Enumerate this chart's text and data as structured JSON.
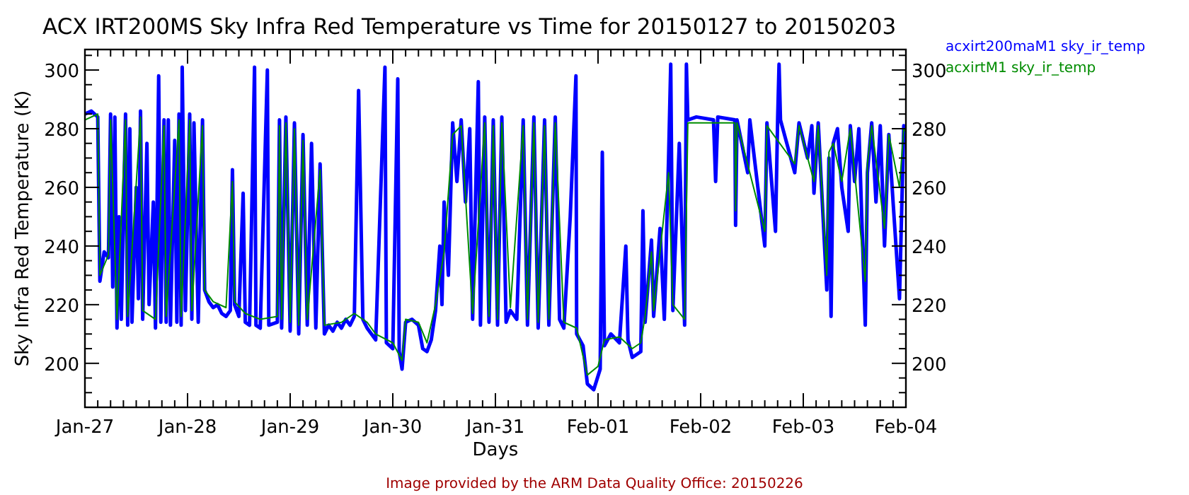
{
  "chart_data": {
    "type": "line",
    "title": "ACX IRT200MS Sky Infra Red Temperature vs Time for 20150127 to 20150203",
    "xlabel": "Days",
    "ylabel": "Sky Infra Red Temperature (K)",
    "legend": "top right",
    "annotations": [
      "Image provided by the ARM Data Quality Office: 20150226"
    ],
    "xlim": [
      "2015-01-27",
      "2015-02-04"
    ],
    "xticks": [
      {
        "value": "2015-01-27",
        "label": "Jan-27"
      },
      {
        "value": "2015-01-27T03:00",
        "label": null
      },
      {
        "value": "2015-01-27T06:00",
        "label": null
      },
      {
        "value": "2015-01-27T09:00",
        "label": null
      },
      {
        "value": "2015-01-27T12:00",
        "label": null
      },
      {
        "value": "2015-01-27T15:00",
        "label": null
      },
      {
        "value": "2015-01-27T18:00",
        "label": null
      },
      {
        "value": "2015-01-27T21:00",
        "label": null
      },
      {
        "value": "2015-01-28",
        "label": "Jan-28"
      },
      {
        "value": "2015-01-28T03:00",
        "label": null
      },
      {
        "value": "2015-01-28T06:00",
        "label": null
      },
      {
        "value": "2015-01-28T09:00",
        "label": null
      },
      {
        "value": "2015-01-28T12:00",
        "label": null
      },
      {
        "value": "2015-01-28T15:00",
        "label": null
      },
      {
        "value": "2015-01-28T18:00",
        "label": null
      },
      {
        "value": "2015-01-28T21:00",
        "label": null
      },
      {
        "value": "2015-01-29",
        "label": "Jan-29"
      },
      {
        "value": "2015-01-29T03:00",
        "label": null
      },
      {
        "value": "2015-01-29T06:00",
        "label": null
      },
      {
        "value": "2015-01-29T09:00",
        "label": null
      },
      {
        "value": "2015-01-29T12:00",
        "label": null
      },
      {
        "value": "2015-01-29T15:00",
        "label": null
      },
      {
        "value": "2015-01-29T18:00",
        "label": null
      },
      {
        "value": "2015-01-29T21:00",
        "label": null
      },
      {
        "value": "2015-01-30",
        "label": "Jan-30"
      },
      {
        "value": "2015-01-30T03:00",
        "label": null
      },
      {
        "value": "2015-01-30T06:00",
        "label": null
      },
      {
        "value": "2015-01-30T09:00",
        "label": null
      },
      {
        "value": "2015-01-30T12:00",
        "label": null
      },
      {
        "value": "2015-01-30T15:00",
        "label": null
      },
      {
        "value": "2015-01-30T18:00",
        "label": null
      },
      {
        "value": "2015-01-30T21:00",
        "label": null
      },
      {
        "value": "2015-01-31",
        "label": "Jan-31"
      },
      {
        "value": "2015-01-31T03:00",
        "label": null
      },
      {
        "value": "2015-01-31T06:00",
        "label": null
      },
      {
        "value": "2015-01-31T09:00",
        "label": null
      },
      {
        "value": "2015-01-31T12:00",
        "label": null
      },
      {
        "value": "2015-01-31T15:00",
        "label": null
      },
      {
        "value": "2015-01-31T18:00",
        "label": null
      },
      {
        "value": "2015-01-31T21:00",
        "label": null
      },
      {
        "value": "2015-02-01",
        "label": "Feb-01"
      },
      {
        "value": "2015-02-01T03:00",
        "label": null
      },
      {
        "value": "2015-02-01T06:00",
        "label": null
      },
      {
        "value": "2015-02-01T09:00",
        "label": null
      },
      {
        "value": "2015-02-01T12:00",
        "label": null
      },
      {
        "value": "2015-02-01T15:00",
        "label": null
      },
      {
        "value": "2015-02-01T18:00",
        "label": null
      },
      {
        "value": "2015-02-01T21:00",
        "label": null
      },
      {
        "value": "2015-02-02",
        "label": "Feb-02"
      },
      {
        "value": "2015-02-02T03:00",
        "label": null
      },
      {
        "value": "2015-02-02T06:00",
        "label": null
      },
      {
        "value": "2015-02-02T09:00",
        "label": null
      },
      {
        "value": "2015-02-02T12:00",
        "label": null
      },
      {
        "value": "2015-02-02T15:00",
        "label": null
      },
      {
        "value": "2015-02-02T18:00",
        "label": null
      },
      {
        "value": "2015-02-02T21:00",
        "label": null
      },
      {
        "value": "2015-02-03",
        "label": "Feb-03"
      },
      {
        "value": "2015-02-03T03:00",
        "label": null
      },
      {
        "value": "2015-02-03T06:00",
        "label": null
      },
      {
        "value": "2015-02-03T09:00",
        "label": null
      },
      {
        "value": "2015-02-03T12:00",
        "label": null
      },
      {
        "value": "2015-02-03T15:00",
        "label": null
      },
      {
        "value": "2015-02-03T18:00",
        "label": null
      },
      {
        "value": "2015-02-03T21:00",
        "label": null
      },
      {
        "value": "2015-02-04",
        "label": "Feb-04"
      }
    ],
    "ylim": [
      185,
      307
    ],
    "yticks": [
      {
        "value": 185,
        "label": null
      },
      {
        "value": 190,
        "label": null
      },
      {
        "value": 195,
        "label": null
      },
      200,
      {
        "value": 205,
        "label": null
      },
      {
        "value": 210,
        "label": null
      },
      {
        "value": 215,
        "label": null
      },
      220,
      {
        "value": 225,
        "label": null
      },
      {
        "value": 230,
        "label": null
      },
      {
        "value": 235,
        "label": null
      },
      240,
      {
        "value": 245,
        "label": null
      },
      {
        "value": 250,
        "label": null
      },
      {
        "value": 255,
        "label": null
      },
      260,
      {
        "value": 265,
        "label": null
      },
      {
        "value": 270,
        "label": null
      },
      {
        "value": 275,
        "label": null
      },
      280,
      {
        "value": 285,
        "label": null
      },
      {
        "value": 290,
        "label": null
      },
      {
        "value": 295,
        "label": null
      },
      300,
      {
        "value": 305,
        "label": null
      }
    ],
    "y2lim": [
      185,
      307
    ],
    "y2ticks": [
      {
        "value": 185,
        "label": null
      },
      {
        "value": 190,
        "label": null
      },
      {
        "value": 195,
        "label": null
      },
      200,
      {
        "value": 205,
        "label": null
      },
      {
        "value": 210,
        "label": null
      },
      {
        "value": 215,
        "label": null
      },
      220,
      {
        "value": 225,
        "label": null
      },
      {
        "value": 230,
        "label": null
      },
      {
        "value": 235,
        "label": null
      },
      240,
      {
        "value": 245,
        "label": null
      },
      {
        "value": 250,
        "label": null
      },
      {
        "value": 255,
        "label": null
      },
      260,
      {
        "value": 265,
        "label": null
      },
      {
        "value": 270,
        "label": null
      },
      {
        "value": 275,
        "label": null
      },
      280,
      {
        "value": 285,
        "label": null
      },
      {
        "value": 290,
        "label": null
      },
      {
        "value": 295,
        "label": null
      },
      300,
      {
        "value": 305,
        "label": null
      }
    ],
    "series": [
      {
        "name": "acxirt200maM1 sky_ir_temp",
        "color": "#0000ff",
        "x": [
          "2015-01-27T00:00",
          "2015-01-27T01:30",
          "2015-01-27T03:00",
          "2015-01-27T03:30",
          "2015-01-27T04:30",
          "2015-01-27T05:30",
          "2015-01-27T06:00",
          "2015-01-27T06:30",
          "2015-01-27T07:00",
          "2015-01-27T07:30",
          "2015-01-27T08:00",
          "2015-01-27T08:30",
          "2015-01-27T09:30",
          "2015-01-27T10:00",
          "2015-01-27T10:30",
          "2015-01-27T11:00",
          "2015-01-27T12:00",
          "2015-01-27T12:30",
          "2015-01-27T13:00",
          "2015-01-27T13:30",
          "2015-01-27T14:30",
          "2015-01-27T15:00",
          "2015-01-27T16:00",
          "2015-01-27T16:30",
          "2015-01-27T17:15",
          "2015-01-27T17:45",
          "2015-01-27T18:30",
          "2015-01-27T19:00",
          "2015-01-27T19:30",
          "2015-01-27T20:00",
          "2015-01-27T21:00",
          "2015-01-27T21:30",
          "2015-01-27T22:00",
          "2015-01-27T22:30",
          "2015-01-27T22:45",
          "2015-01-27T23:30",
          "2015-01-28T00:30",
          "2015-01-28T01:00",
          "2015-01-28T01:30",
          "2015-01-28T02:30",
          "2015-01-28T03:30",
          "2015-01-28T04:00",
          "2015-01-28T05:00",
          "2015-01-28T06:00",
          "2015-01-28T07:00",
          "2015-01-28T08:00",
          "2015-01-28T09:00",
          "2015-01-28T10:00",
          "2015-01-28T10:30",
          "2015-01-28T11:00",
          "2015-01-28T12:00",
          "2015-01-28T13:00",
          "2015-01-28T13:30",
          "2015-01-28T14:30",
          "2015-01-28T15:40",
          "2015-01-28T16:00",
          "2015-01-28T17:00",
          "2015-01-28T18:40",
          "2015-01-28T19:00",
          "2015-01-28T21:00",
          "2015-01-28T21:30",
          "2015-01-28T22:00",
          "2015-01-28T23:00",
          "2015-01-29T00:00",
          "2015-01-29T01:00",
          "2015-01-29T02:00",
          "2015-01-29T03:00",
          "2015-01-29T04:00",
          "2015-01-29T05:00",
          "2015-01-29T06:00",
          "2015-01-29T07:00",
          "2015-01-29T08:00",
          "2015-01-29T09:00",
          "2015-01-29T10:00",
          "2015-01-29T11:00",
          "2015-01-29T12:00",
          "2015-01-29T13:00",
          "2015-01-29T14:00",
          "2015-01-29T15:00",
          "2015-01-29T16:00",
          "2015-01-29T17:00",
          "2015-01-29T18:00",
          "2015-01-29T19:00",
          "2015-01-29T20:00",
          "2015-01-29T22:10",
          "2015-01-29T22:30",
          "2015-01-30T00:00",
          "2015-01-30T01:10",
          "2015-01-30T01:30",
          "2015-01-30T02:10",
          "2015-01-30T03:00",
          "2015-01-30T04:30",
          "2015-01-30T06:00",
          "2015-01-30T07:00",
          "2015-01-30T08:00",
          "2015-01-30T09:00",
          "2015-01-30T10:00",
          "2015-01-30T11:00",
          "2015-01-30T11:30",
          "2015-01-30T12:00",
          "2015-01-30T13:00",
          "2015-01-30T14:00",
          "2015-01-30T15:00",
          "2015-01-30T16:00",
          "2015-01-30T17:00",
          "2015-01-30T18:00",
          "2015-01-30T18:40",
          "2015-01-30T20:00",
          "2015-01-30T20:30",
          "2015-01-30T21:30",
          "2015-01-30T22:30",
          "2015-01-30T23:30",
          "2015-01-31T00:30",
          "2015-01-31T01:30",
          "2015-01-31T02:30",
          "2015-01-31T03:30",
          "2015-01-31T05:00",
          "2015-01-31T06:30",
          "2015-01-31T07:30",
          "2015-01-31T09:00",
          "2015-01-31T10:00",
          "2015-01-31T11:30",
          "2015-01-31T12:30",
          "2015-01-31T14:00",
          "2015-01-31T15:00",
          "2015-01-31T16:00",
          "2015-01-31T17:30",
          "2015-01-31T18:50",
          "2015-01-31T19:00",
          "2015-01-31T20:30",
          "2015-01-31T21:30",
          "2015-01-31T23:00",
          "2015-02-01T00:30",
          "2015-02-01T01:00",
          "2015-02-01T01:30",
          "2015-02-01T03:00",
          "2015-02-01T05:00",
          "2015-02-01T06:30",
          "2015-02-01T07:00",
          "2015-02-01T08:00",
          "2015-02-01T10:00",
          "2015-02-01T10:30",
          "2015-02-01T11:00",
          "2015-02-01T12:30",
          "2015-02-01T13:00",
          "2015-02-01T14:30",
          "2015-02-01T15:30",
          "2015-02-01T16:30",
          "2015-02-01T17:00",
          "2015-02-01T17:30",
          "2015-02-01T19:00",
          "2015-02-01T20:15",
          "2015-02-01T20:40",
          "2015-02-01T21:00",
          "2015-02-01T23:00",
          "2015-02-02T03:00",
          "2015-02-02T03:30",
          "2015-02-02T04:00",
          "2015-02-02T08:00",
          "2015-02-02T08:10",
          "2015-02-02T08:30",
          "2015-02-02T11:00",
          "2015-02-02T11:30",
          "2015-02-02T15:00",
          "2015-02-02T15:30",
          "2015-02-02T17:30",
          "2015-02-02T18:00",
          "2015-02-02T18:20",
          "2015-02-02T18:40",
          "2015-02-02T22:00",
          "2015-02-02T23:00",
          "2015-02-03T01:00",
          "2015-02-03T02:00",
          "2015-02-03T02:30",
          "2015-02-03T03:30",
          "2015-02-03T05:30",
          "2015-02-03T06:00",
          "2015-02-03T06:30",
          "2015-02-03T07:00",
          "2015-02-03T08:00",
          "2015-02-03T09:00",
          "2015-02-03T10:30",
          "2015-02-03T11:00",
          "2015-02-03T12:00",
          "2015-02-03T13:00",
          "2015-02-03T14:30",
          "2015-02-03T15:00",
          "2015-02-03T16:00",
          "2015-02-03T17:00",
          "2015-02-03T18:00",
          "2015-02-03T19:00",
          "2015-02-03T20:00",
          "2015-02-03T21:00",
          "2015-02-03T22:30",
          "2015-02-03T23:30",
          "2015-02-04T00:00"
        ],
        "values": [
          285,
          286,
          284,
          228,
          238,
          236,
          285,
          226,
          284,
          212,
          250,
          215,
          285,
          213,
          280,
          214,
          260,
          222,
          286,
          215,
          275,
          220,
          255,
          212,
          298,
          214,
          283,
          214,
          283,
          213,
          276,
          214,
          285,
          213,
          301,
          218,
          285,
          215,
          282,
          214,
          283,
          225,
          221,
          219,
          220,
          217,
          216,
          218,
          266,
          220,
          216,
          258,
          214,
          213,
          301,
          213,
          212,
          300,
          213,
          214,
          283,
          212,
          284,
          211,
          282,
          210,
          278,
          213,
          275,
          212,
          268,
          210,
          213,
          211,
          214,
          212,
          215,
          213,
          216,
          293,
          215,
          212,
          210,
          208,
          301,
          207,
          205,
          297,
          204,
          198,
          214,
          215,
          213,
          205,
          204,
          208,
          218,
          240,
          220,
          255,
          230,
          282,
          262,
          283,
          255,
          280,
          215,
          296,
          213,
          284,
          214,
          283,
          213,
          284,
          214,
          218,
          215,
          283,
          213,
          284,
          212,
          283,
          213,
          284,
          215,
          212,
          250,
          298,
          210,
          206,
          193,
          191,
          198,
          272,
          206,
          210,
          207,
          240,
          208,
          202,
          204,
          252,
          214,
          242,
          216,
          246,
          215,
          270,
          302,
          218,
          275,
          213,
          302,
          283,
          284,
          283,
          262,
          284,
          283,
          247,
          283,
          265,
          283,
          240,
          282,
          245,
          283,
          302,
          283,
          265,
          282,
          270,
          281,
          258,
          282,
          225,
          270,
          216,
          275,
          280,
          260,
          245,
          281,
          262,
          280,
          213,
          265,
          282,
          255,
          281,
          240,
          278,
          255,
          222,
          281,
          278
        ]
      },
      {
        "name": "acxirtM1 sky_ir_temp",
        "color": "#008c00",
        "x": [
          "2015-01-27T00:00",
          "2015-01-27T03:00",
          "2015-01-27T03:30",
          "2015-01-27T05:30",
          "2015-01-27T06:00",
          "2015-01-27T07:30",
          "2015-01-27T09:30",
          "2015-01-27T10:00",
          "2015-01-27T13:00",
          "2015-01-27T13:30",
          "2015-01-27T16:30",
          "2015-01-27T18:30",
          "2015-01-27T19:00",
          "2015-01-27T22:00",
          "2015-01-27T22:30",
          "2015-01-28T00:30",
          "2015-01-28T01:00",
          "2015-01-28T03:30",
          "2015-01-28T04:00",
          "2015-01-28T06:00",
          "2015-01-28T09:00",
          "2015-01-28T10:30",
          "2015-01-28T11:00",
          "2015-01-28T13:30",
          "2015-01-28T17:00",
          "2015-01-28T21:00",
          "2015-01-28T21:30",
          "2015-01-28T22:00",
          "2015-01-28T23:00",
          "2015-01-29T00:00",
          "2015-01-29T01:00",
          "2015-01-29T02:00",
          "2015-01-29T03:00",
          "2015-01-29T04:00",
          "2015-01-29T07:00",
          "2015-01-29T08:00",
          "2015-01-29T12:00",
          "2015-01-29T15:00",
          "2015-01-29T18:00",
          "2015-01-29T20:00",
          "2015-01-30T00:00",
          "2015-01-30T02:10",
          "2015-01-30T03:00",
          "2015-01-30T06:00",
          "2015-01-30T08:00",
          "2015-01-30T10:00",
          "2015-01-30T12:00",
          "2015-01-30T14:00",
          "2015-01-30T16:00",
          "2015-01-30T18:40",
          "2015-01-30T21:30",
          "2015-01-30T22:30",
          "2015-01-30T23:30",
          "2015-01-31T00:30",
          "2015-01-31T01:30",
          "2015-01-31T03:30",
          "2015-01-31T06:30",
          "2015-01-31T07:30",
          "2015-01-31T09:00",
          "2015-01-31T10:00",
          "2015-01-31T11:30",
          "2015-01-31T12:30",
          "2015-01-31T14:00",
          "2015-01-31T16:00",
          "2015-01-31T19:00",
          "2015-01-31T21:30",
          "2015-02-01T00:00",
          "2015-02-01T01:30",
          "2015-02-01T05:00",
          "2015-02-01T08:00",
          "2015-02-01T10:00",
          "2015-02-01T11:00",
          "2015-02-01T12:30",
          "2015-02-01T13:00",
          "2015-02-01T16:30",
          "2015-02-01T17:30",
          "2015-02-01T20:15",
          "2015-02-01T21:00",
          "2015-02-02T08:00",
          "2015-02-02T08:10",
          "2015-02-02T08:30",
          "2015-02-02T15:00",
          "2015-02-02T15:30",
          "2015-02-02T22:00",
          "2015-02-02T23:00",
          "2015-02-03T02:30",
          "2015-02-03T03:30",
          "2015-02-03T05:30",
          "2015-02-03T06:00",
          "2015-02-03T07:00",
          "2015-02-03T09:00",
          "2015-02-03T11:00",
          "2015-02-03T14:30",
          "2015-02-03T15:00",
          "2015-02-03T16:00",
          "2015-02-03T19:00",
          "2015-02-03T20:00",
          "2015-02-03T22:30",
          "2015-02-03T23:30",
          "2015-02-04T00:00"
        ],
        "values": [
          283,
          285,
          230,
          237,
          283,
          215,
          283,
          216,
          284,
          218,
          215,
          281,
          216,
          283,
          216,
          283,
          218,
          281,
          225,
          221,
          219,
          262,
          221,
          217,
          215,
          216,
          281,
          215,
          282,
          214,
          280,
          213,
          276,
          215,
          266,
          213,
          214,
          217,
          214,
          210,
          207,
          201,
          215,
          214,
          207,
          220,
          238,
          278,
          281,
          217,
          282,
          216,
          281,
          215,
          282,
          219,
          281,
          215,
          282,
          214,
          281,
          215,
          282,
          214,
          212,
          196,
          199,
          208,
          209,
          205,
          207,
          216,
          238,
          218,
          265,
          220,
          215,
          282,
          282,
          252,
          282,
          245,
          281,
          268,
          281,
          262,
          281,
          230,
          272,
          275,
          262,
          280,
          228,
          268,
          281,
          246,
          278,
          260,
          280,
          279
        ]
      }
    ]
  }
}
